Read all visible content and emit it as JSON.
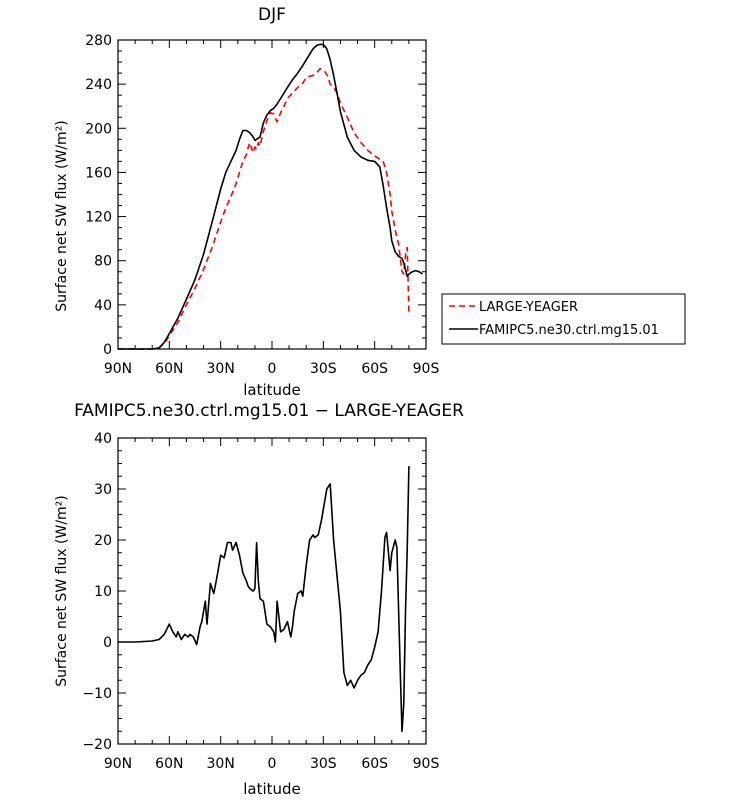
{
  "chart_data": [
    {
      "type": "line",
      "title": "DJF",
      "xlabel": "latitude",
      "ylabel": "Surface net SW flux (W/m²)",
      "xlim": [
        -90,
        90
      ],
      "ylim": [
        0,
        280
      ],
      "x_ticks": [
        -90,
        -60,
        -30,
        0,
        30,
        60,
        90
      ],
      "x_tick_labels": [
        "90N",
        "60N",
        "30N",
        "0",
        "30S",
        "60S",
        "90S"
      ],
      "y_ticks": [
        0,
        40,
        80,
        120,
        160,
        200,
        240,
        280
      ],
      "y_tick_labels": [
        "0",
        "40",
        "80",
        "120",
        "160",
        "200",
        "240",
        "280"
      ],
      "legend_position": "right",
      "series": [
        {
          "name": "LARGE-YEAGER",
          "color": "#ff0000",
          "dash": "dashed",
          "x": [
            -90,
            -80,
            -70,
            -66,
            -63,
            -60,
            -55,
            -50,
            -45,
            -40,
            -35,
            -30,
            -27,
            -24,
            -21,
            -19,
            -17,
            -15,
            -14,
            -13,
            -12,
            -11,
            -10,
            -9,
            -8,
            -7,
            -5,
            -3,
            -1,
            1,
            2,
            3,
            5,
            7,
            9,
            12,
            15,
            18,
            20,
            22,
            24,
            26,
            28,
            30,
            32,
            34,
            36,
            38,
            40,
            44,
            48,
            52,
            56,
            60,
            63,
            65,
            67,
            69,
            70,
            72,
            74,
            76,
            77,
            78,
            79,
            80
          ],
          "y": [
            0,
            0,
            0,
            1,
            5,
            12,
            24,
            40,
            55,
            72,
            92,
            115,
            128,
            138,
            150,
            160,
            170,
            176,
            182,
            187,
            182,
            178,
            183,
            181,
            187,
            184,
            197,
            207,
            214,
            213,
            209,
            206,
            214,
            220,
            227,
            232,
            237,
            241,
            246,
            247,
            248,
            250,
            254,
            253,
            249,
            240,
            237,
            232,
            223,
            210,
            196,
            187,
            180,
            175,
            172,
            170,
            160,
            140,
            125,
            108,
            95,
            70,
            68,
            85,
            92,
            33
          ]
        },
        {
          "name": "FAMIPC5.ne30.ctrl.mg15.01",
          "color": "#000000",
          "dash": "solid",
          "x": [
            -90,
            -80,
            -70,
            -66,
            -63,
            -60,
            -55,
            -50,
            -45,
            -40,
            -35,
            -30,
            -27,
            -24,
            -21,
            -19,
            -17,
            -15,
            -13,
            -12,
            -11,
            -10,
            -9,
            -8,
            -7,
            -5,
            -3,
            -1,
            1,
            3,
            5,
            7,
            9,
            12,
            15,
            18,
            20,
            22,
            24,
            26,
            28,
            30,
            32,
            34,
            36,
            38,
            40,
            44,
            48,
            52,
            56,
            60,
            63,
            65,
            67,
            69,
            70,
            72,
            74,
            76,
            77,
            79,
            80,
            82,
            84,
            86,
            88
          ],
          "y": [
            0,
            0,
            0,
            1,
            6,
            14,
            28,
            45,
            63,
            86,
            115,
            145,
            160,
            170,
            180,
            190,
            198,
            198,
            196,
            194,
            192,
            189,
            190,
            191,
            192,
            205,
            212,
            216,
            218,
            222,
            227,
            232,
            237,
            244,
            250,
            257,
            262,
            267,
            272,
            275,
            276,
            276,
            272,
            262,
            248,
            232,
            215,
            192,
            180,
            174,
            171,
            170,
            165,
            148,
            128,
            110,
            98,
            88,
            84,
            82,
            78,
            66,
            68,
            70,
            71,
            70,
            68
          ]
        }
      ]
    },
    {
      "type": "line",
      "title": "FAMIPC5.ne30.ctrl.mg15.01 − LARGE-YEAGER",
      "xlabel": "latitude",
      "ylabel": "Surface net SW flux (W/m²)",
      "xlim": [
        -90,
        90
      ],
      "ylim": [
        -20,
        40
      ],
      "x_ticks": [
        -90,
        -60,
        -30,
        0,
        30,
        60,
        90
      ],
      "x_tick_labels": [
        "90N",
        "60N",
        "30N",
        "0",
        "30S",
        "60S",
        "90S"
      ],
      "y_ticks": [
        -20,
        -10,
        0,
        10,
        20,
        30,
        40
      ],
      "y_tick_labels": [
        "−20",
        "−10",
        "0",
        "10",
        "20",
        "30",
        "40"
      ],
      "series": [
        {
          "color": "#000000",
          "dash": "solid",
          "x": [
            -90,
            -80,
            -70,
            -66,
            -63,
            -60,
            -58,
            -56,
            -55,
            -53,
            -51,
            -49,
            -48,
            -46,
            -44,
            -42,
            -41,
            -39,
            -38,
            -36,
            -34,
            -32,
            -30,
            -28,
            -26,
            -24,
            -23,
            -21,
            -19,
            -17,
            -15,
            -14,
            -13,
            -12,
            -11,
            -10,
            -9,
            -8,
            -7,
            -5,
            -3,
            -1,
            1,
            2,
            3,
            5,
            7,
            9,
            11,
            12,
            13,
            15,
            17,
            18,
            20,
            22,
            24,
            25,
            27,
            29,
            30,
            32,
            34,
            36,
            38,
            40,
            42,
            44,
            46,
            48,
            50,
            52,
            54,
            56,
            58,
            60,
            62,
            64,
            66,
            67,
            69,
            70,
            72,
            73,
            75,
            76,
            77,
            78,
            79,
            80
          ],
          "y": [
            0,
            0,
            0.2,
            0.5,
            1.5,
            3.5,
            2,
            1,
            2,
            0.5,
            1.5,
            1,
            1.5,
            1,
            -0.5,
            3,
            4,
            8,
            3.5,
            11.5,
            9.5,
            13,
            17,
            16.5,
            19.5,
            19.5,
            18,
            19.5,
            17,
            13.5,
            12,
            11,
            10.5,
            10.2,
            10,
            10.5,
            19.5,
            12,
            8.5,
            8,
            3.5,
            3,
            2,
            0,
            8,
            2,
            2.5,
            4,
            1,
            3,
            6,
            9.5,
            10,
            9,
            15,
            20,
            21,
            20.5,
            21,
            24,
            26,
            30,
            31,
            20,
            13,
            6,
            -6,
            -8.5,
            -7.5,
            -9,
            -7.5,
            -6.5,
            -6,
            -4.5,
            -3.5,
            -1,
            2,
            10,
            20.5,
            21.5,
            14,
            17.5,
            20,
            18.5,
            -6,
            -17.5,
            -12,
            6,
            18,
            34.5
          ]
        }
      ]
    }
  ]
}
